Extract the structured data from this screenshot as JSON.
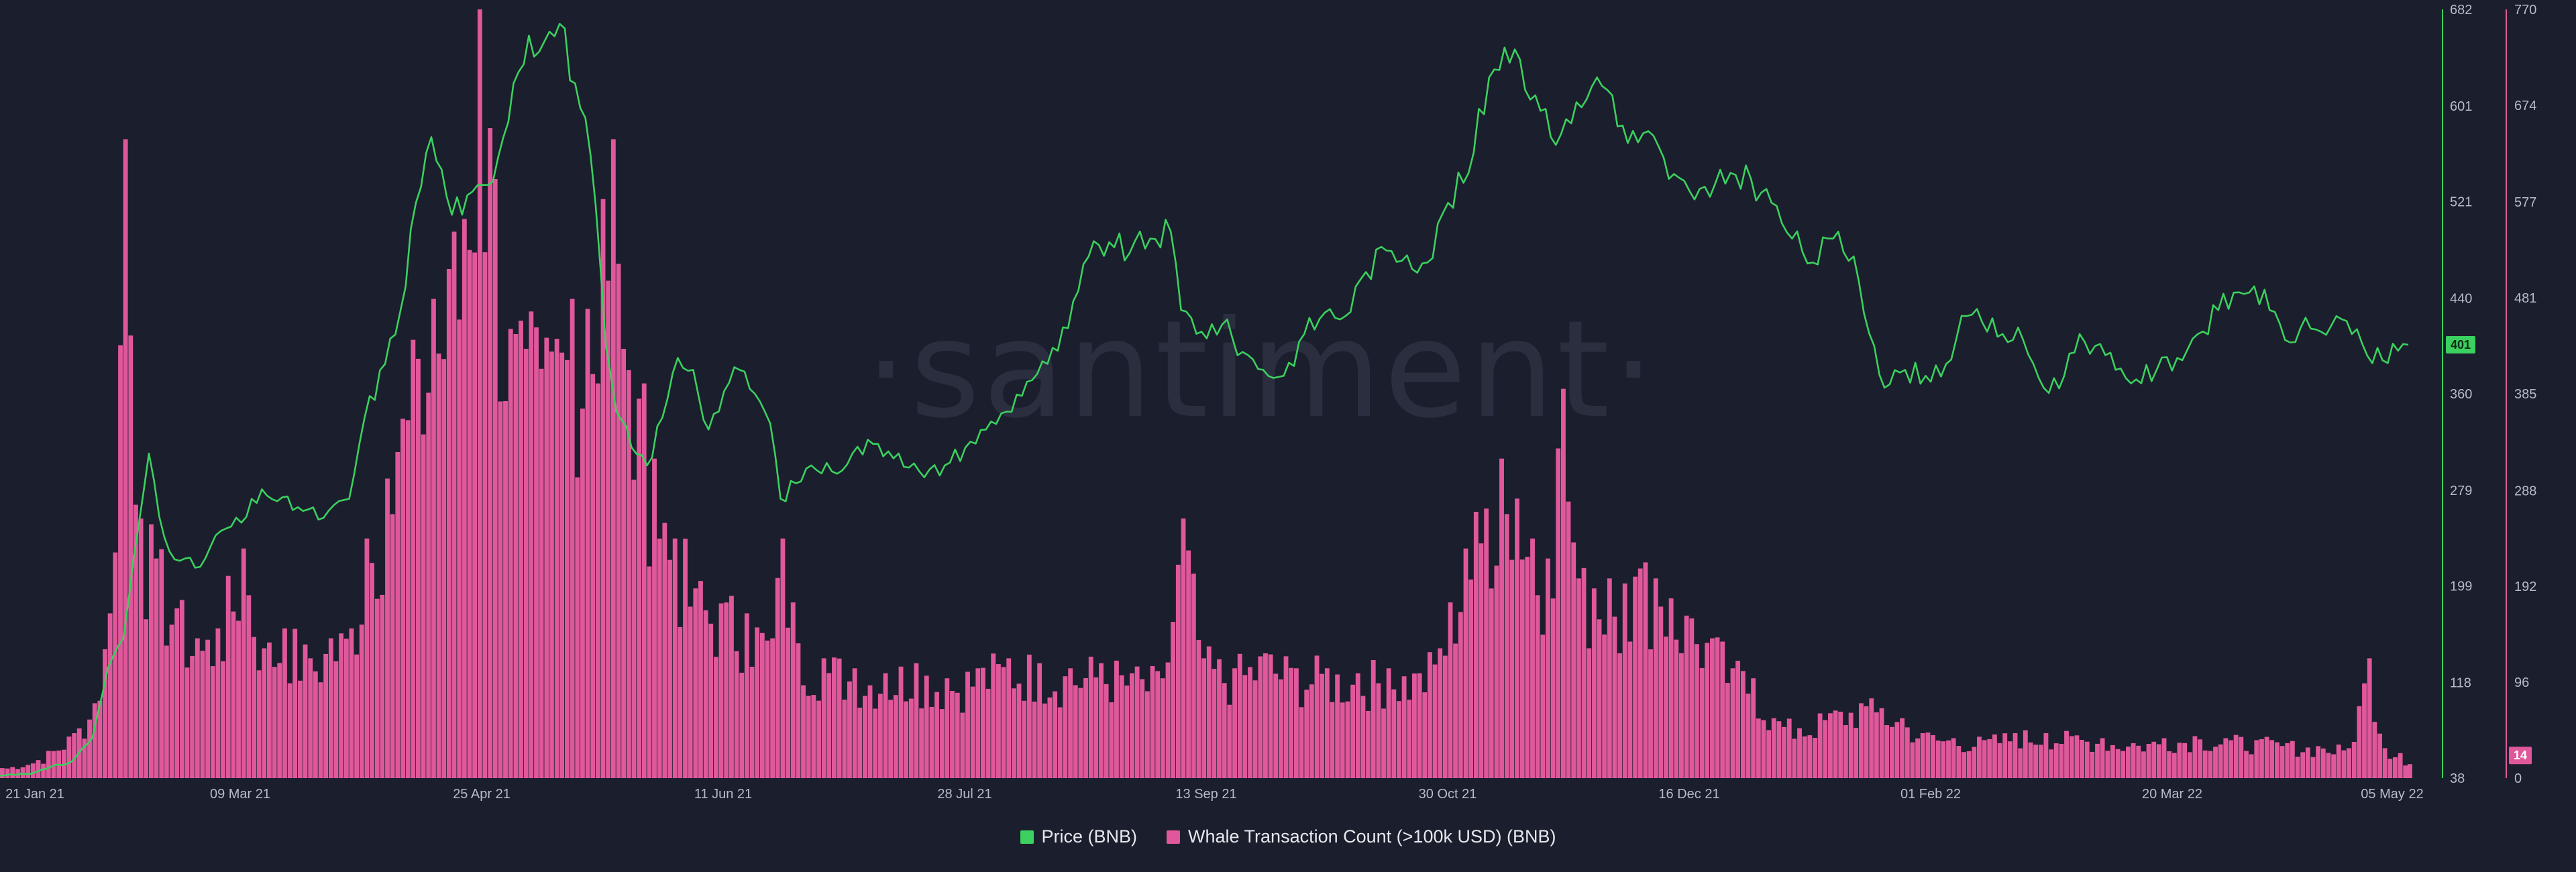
{
  "watermark": "·santiment·",
  "colors": {
    "background": "#1b1e2c",
    "price": "#3bd05f",
    "whale": "#e0589b",
    "axis_text": "#b6bcc9"
  },
  "chart_data": {
    "type": "line+bar",
    "title": "",
    "x_ticks": [
      "21 Jan 21",
      "09 Mar 21",
      "25 Apr 21",
      "11 Jun 21",
      "28 Jul 21",
      "13 Sep 21",
      "30 Oct 21",
      "16 Dec 21",
      "01 Feb 22",
      "20 Mar 22",
      "05 May 22"
    ],
    "x_range": [
      "2021-01-21",
      "2022-05-05"
    ],
    "y_left_ticks": [
      38,
      118,
      199,
      279,
      360,
      440,
      521,
      601,
      682
    ],
    "y_left_range": [
      38,
      682
    ],
    "y_right_ticks": [
      0,
      96,
      192,
      288,
      385,
      481,
      577,
      674,
      770
    ],
    "y_right_range": [
      0,
      770
    ],
    "legend_position": "bottom-center",
    "grid": false,
    "series": [
      {
        "name": "Price (BNB)",
        "type": "line",
        "axis": "left",
        "color": "#3bd05f",
        "last_value_badge": "401",
        "points": [
          [
            "2021-01-21",
            40
          ],
          [
            "2021-01-28",
            43
          ],
          [
            "2021-02-04",
            52
          ],
          [
            "2021-02-08",
            72
          ],
          [
            "2021-02-11",
            130
          ],
          [
            "2021-02-14",
            155
          ],
          [
            "2021-02-17",
            250
          ],
          [
            "2021-02-19",
            310
          ],
          [
            "2021-02-22",
            240
          ],
          [
            "2021-02-25",
            220
          ],
          [
            "2021-03-01",
            215
          ],
          [
            "2021-03-05",
            245
          ],
          [
            "2021-03-09",
            252
          ],
          [
            "2021-03-13",
            280
          ],
          [
            "2021-03-16",
            270
          ],
          [
            "2021-03-20",
            265
          ],
          [
            "2021-03-25",
            256
          ],
          [
            "2021-03-30",
            272
          ],
          [
            "2021-04-02",
            340
          ],
          [
            "2021-04-06",
            385
          ],
          [
            "2021-04-09",
            430
          ],
          [
            "2021-04-12",
            520
          ],
          [
            "2021-04-15",
            575
          ],
          [
            "2021-04-18",
            525
          ],
          [
            "2021-04-21",
            510
          ],
          [
            "2021-04-25",
            535
          ],
          [
            "2021-04-28",
            558
          ],
          [
            "2021-05-01",
            620
          ],
          [
            "2021-05-04",
            660
          ],
          [
            "2021-05-07",
            655
          ],
          [
            "2021-05-10",
            670
          ],
          [
            "2021-05-13",
            620
          ],
          [
            "2021-05-16",
            560
          ],
          [
            "2021-05-19",
            400
          ],
          [
            "2021-05-21",
            345
          ],
          [
            "2021-05-24",
            315
          ],
          [
            "2021-05-27",
            300
          ],
          [
            "2021-05-30",
            340
          ],
          [
            "2021-06-02",
            390
          ],
          [
            "2021-06-05",
            380
          ],
          [
            "2021-06-08",
            330
          ],
          [
            "2021-06-11",
            362
          ],
          [
            "2021-06-14",
            380
          ],
          [
            "2021-06-17",
            360
          ],
          [
            "2021-06-20",
            335
          ],
          [
            "2021-06-22",
            272
          ],
          [
            "2021-06-25",
            285
          ],
          [
            "2021-06-28",
            300
          ],
          [
            "2021-07-02",
            295
          ],
          [
            "2021-07-06",
            310
          ],
          [
            "2021-07-10",
            318
          ],
          [
            "2021-07-15",
            310
          ],
          [
            "2021-07-20",
            290
          ],
          [
            "2021-07-24",
            300
          ],
          [
            "2021-07-28",
            315
          ],
          [
            "2021-08-01",
            330
          ],
          [
            "2021-08-05",
            345
          ],
          [
            "2021-08-09",
            370
          ],
          [
            "2021-08-13",
            385
          ],
          [
            "2021-08-17",
            415
          ],
          [
            "2021-08-21",
            475
          ],
          [
            "2021-08-25",
            487
          ],
          [
            "2021-08-29",
            478
          ],
          [
            "2021-09-02",
            490
          ],
          [
            "2021-09-06",
            496
          ],
          [
            "2021-09-08",
            430
          ],
          [
            "2021-09-12",
            412
          ],
          [
            "2021-09-16",
            418
          ],
          [
            "2021-09-20",
            395
          ],
          [
            "2021-09-24",
            380
          ],
          [
            "2021-09-28",
            375
          ],
          [
            "2021-10-02",
            410
          ],
          [
            "2021-10-06",
            428
          ],
          [
            "2021-10-10",
            425
          ],
          [
            "2021-10-14",
            462
          ],
          [
            "2021-10-18",
            480
          ],
          [
            "2021-10-22",
            476
          ],
          [
            "2021-10-26",
            470
          ],
          [
            "2021-10-30",
            520
          ],
          [
            "2021-11-03",
            545
          ],
          [
            "2021-11-07",
            625
          ],
          [
            "2021-11-10",
            650
          ],
          [
            "2021-11-13",
            640
          ],
          [
            "2021-11-16",
            610
          ],
          [
            "2021-11-19",
            575
          ],
          [
            "2021-11-22",
            590
          ],
          [
            "2021-11-25",
            600
          ],
          [
            "2021-11-28",
            625
          ],
          [
            "2021-12-01",
            610
          ],
          [
            "2021-12-04",
            570
          ],
          [
            "2021-12-08",
            580
          ],
          [
            "2021-12-12",
            540
          ],
          [
            "2021-12-16",
            530
          ],
          [
            "2021-12-20",
            525
          ],
          [
            "2021-12-24",
            545
          ],
          [
            "2021-12-28",
            540
          ],
          [
            "2022-01-01",
            520
          ],
          [
            "2022-01-05",
            490
          ],
          [
            "2022-01-09",
            470
          ],
          [
            "2022-01-13",
            490
          ],
          [
            "2022-01-17",
            475
          ],
          [
            "2022-01-21",
            400
          ],
          [
            "2022-01-23",
            365
          ],
          [
            "2022-01-27",
            380
          ],
          [
            "2022-01-31",
            375
          ],
          [
            "2022-02-04",
            385
          ],
          [
            "2022-02-08",
            425
          ],
          [
            "2022-02-11",
            420
          ],
          [
            "2022-02-15",
            410
          ],
          [
            "2022-02-19",
            405
          ],
          [
            "2022-02-23",
            365
          ],
          [
            "2022-02-27",
            375
          ],
          [
            "2022-03-02",
            410
          ],
          [
            "2022-03-05",
            400
          ],
          [
            "2022-03-09",
            380
          ],
          [
            "2022-03-13",
            372
          ],
          [
            "2022-03-17",
            380
          ],
          [
            "2022-03-21",
            390
          ],
          [
            "2022-03-25",
            410
          ],
          [
            "2022-03-29",
            430
          ],
          [
            "2022-04-02",
            445
          ],
          [
            "2022-04-05",
            450
          ],
          [
            "2022-04-08",
            430
          ],
          [
            "2022-04-11",
            405
          ],
          [
            "2022-04-14",
            415
          ],
          [
            "2022-04-18",
            412
          ],
          [
            "2022-04-21",
            425
          ],
          [
            "2022-04-24",
            410
          ],
          [
            "2022-04-27",
            392
          ],
          [
            "2022-04-30",
            388
          ],
          [
            "2022-05-03",
            396
          ],
          [
            "2022-05-05",
            401
          ]
        ]
      },
      {
        "name": "Whale Transaction Count (>100k USD) (BNB)",
        "type": "bar",
        "axis": "right",
        "color": "#e0589b",
        "last_value_badge": "14",
        "points": [
          [
            "2021-01-21",
            10
          ],
          [
            "2021-01-28",
            18
          ],
          [
            "2021-02-04",
            45
          ],
          [
            "2021-02-08",
            75
          ],
          [
            "2021-02-11",
            165
          ],
          [
            "2021-02-14",
            640
          ],
          [
            "2021-02-17",
            260
          ],
          [
            "2021-02-20",
            220
          ],
          [
            "2021-02-24",
            170
          ],
          [
            "2021-02-28",
            140
          ],
          [
            "2021-03-04",
            150
          ],
          [
            "2021-03-09",
            230
          ],
          [
            "2021-03-13",
            130
          ],
          [
            "2021-03-17",
            150
          ],
          [
            "2021-03-22",
            120
          ],
          [
            "2021-03-26",
            140
          ],
          [
            "2021-03-30",
            150
          ],
          [
            "2021-04-02",
            240
          ],
          [
            "2021-04-06",
            300
          ],
          [
            "2021-04-09",
            360
          ],
          [
            "2021-04-12",
            420
          ],
          [
            "2021-04-15",
            480
          ],
          [
            "2021-04-18",
            510
          ],
          [
            "2021-04-21",
            560
          ],
          [
            "2021-04-24",
            770
          ],
          [
            "2021-04-27",
            600
          ],
          [
            "2021-04-30",
            450
          ],
          [
            "2021-05-03",
            430
          ],
          [
            "2021-05-06",
            410
          ],
          [
            "2021-05-09",
            440
          ],
          [
            "2021-05-12",
            480
          ],
          [
            "2021-05-15",
            470
          ],
          [
            "2021-05-18",
            580
          ],
          [
            "2021-05-20",
            640
          ],
          [
            "2021-05-22",
            430
          ],
          [
            "2021-05-25",
            380
          ],
          [
            "2021-05-28",
            320
          ],
          [
            "2021-06-01",
            240
          ],
          [
            "2021-06-05",
            190
          ],
          [
            "2021-06-10",
            175
          ],
          [
            "2021-06-15",
            165
          ],
          [
            "2021-06-20",
            140
          ],
          [
            "2021-06-22",
            240
          ],
          [
            "2021-06-25",
            135
          ],
          [
            "2021-06-30",
            120
          ],
          [
            "2021-07-06",
            110
          ],
          [
            "2021-07-12",
            105
          ],
          [
            "2021-07-18",
            115
          ],
          [
            "2021-07-24",
            100
          ],
          [
            "2021-07-30",
            110
          ],
          [
            "2021-08-05",
            120
          ],
          [
            "2021-08-11",
            115
          ],
          [
            "2021-08-17",
            110
          ],
          [
            "2021-08-23",
            115
          ],
          [
            "2021-08-29",
            105
          ],
          [
            "2021-09-04",
            100
          ],
          [
            "2021-09-08",
            260
          ],
          [
            "2021-09-12",
            120
          ],
          [
            "2021-09-18",
            110
          ],
          [
            "2021-09-24",
            125
          ],
          [
            "2021-09-30",
            110
          ],
          [
            "2021-10-06",
            110
          ],
          [
            "2021-10-12",
            105
          ],
          [
            "2021-10-18",
            110
          ],
          [
            "2021-10-24",
            105
          ],
          [
            "2021-10-28",
            130
          ],
          [
            "2021-11-02",
            230
          ],
          [
            "2021-11-06",
            270
          ],
          [
            "2021-11-09",
            320
          ],
          [
            "2021-11-12",
            280
          ],
          [
            "2021-11-15",
            240
          ],
          [
            "2021-11-18",
            220
          ],
          [
            "2021-11-21",
            390
          ],
          [
            "2021-11-24",
            200
          ],
          [
            "2021-11-27",
            190
          ],
          [
            "2021-11-30",
            200
          ],
          [
            "2021-12-03",
            195
          ],
          [
            "2021-12-06",
            210
          ],
          [
            "2021-12-09",
            200
          ],
          [
            "2021-12-12",
            180
          ],
          [
            "2021-12-16",
            160
          ],
          [
            "2021-12-20",
            140
          ],
          [
            "2021-12-24",
            110
          ],
          [
            "2021-12-28",
            100
          ],
          [
            "2022-01-01",
            60
          ],
          [
            "2022-01-06",
            50
          ],
          [
            "2022-01-12",
            65
          ],
          [
            "2022-01-18",
            75
          ],
          [
            "2022-01-22",
            70
          ],
          [
            "2022-01-26",
            60
          ],
          [
            "2022-01-30",
            45
          ],
          [
            "2022-02-05",
            40
          ],
          [
            "2022-02-11",
            38
          ],
          [
            "2022-02-17",
            45
          ],
          [
            "2022-02-23",
            45
          ],
          [
            "2022-02-28",
            42
          ],
          [
            "2022-03-06",
            40
          ],
          [
            "2022-03-12",
            35
          ],
          [
            "2022-03-18",
            40
          ],
          [
            "2022-03-24",
            42
          ],
          [
            "2022-03-30",
            40
          ],
          [
            "2022-04-05",
            38
          ],
          [
            "2022-04-11",
            35
          ],
          [
            "2022-04-17",
            32
          ],
          [
            "2022-04-23",
            30
          ],
          [
            "2022-04-27",
            120
          ],
          [
            "2022-04-30",
            30
          ],
          [
            "2022-05-03",
            25
          ],
          [
            "2022-05-05",
            14
          ]
        ]
      }
    ]
  }
}
